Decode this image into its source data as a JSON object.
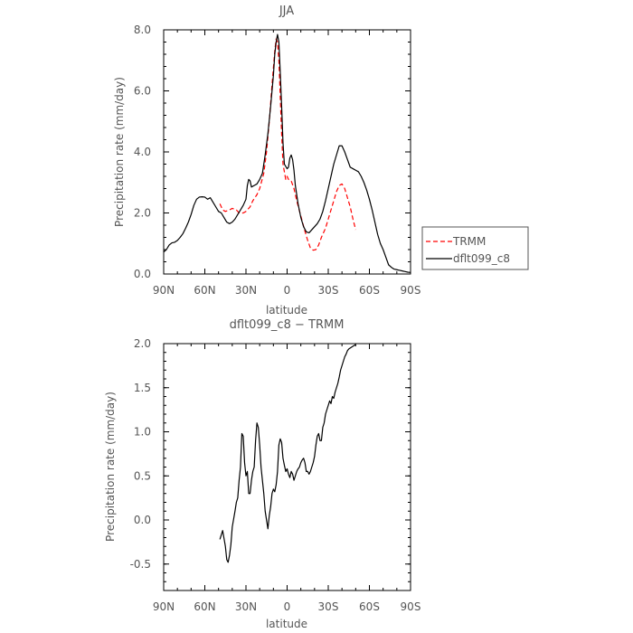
{
  "chart_data": [
    {
      "type": "line",
      "title": "JJA",
      "xlabel": "latitude",
      "ylabel": "Precipitation rate (mm/day)",
      "xlim": [
        90,
        -90
      ],
      "ylim": [
        0,
        8
      ],
      "xticks": [
        90,
        60,
        30,
        0,
        -30,
        -60,
        -90
      ],
      "xtick_labels": [
        "90N",
        "60N",
        "30N",
        "0",
        "30S",
        "60S",
        "90S"
      ],
      "yticks": [
        0,
        2,
        4,
        6,
        8
      ],
      "ytick_labels": [
        "0.0",
        "2.0",
        "4.0",
        "6.0",
        "8.0"
      ],
      "legend_position": "right-middle",
      "series": [
        {
          "name": "TRMM",
          "color": "#ff0000",
          "style": "dashed",
          "x": [
            49,
            47,
            45,
            42,
            40,
            37,
            35,
            32,
            30,
            27,
            25,
            22,
            20,
            17,
            15,
            13,
            11,
            9,
            8,
            7,
            6,
            5,
            4,
            3,
            1,
            0,
            -1,
            -3,
            -5,
            -7,
            -10,
            -13,
            -15,
            -17,
            -19,
            -21,
            -23,
            -25,
            -28,
            -30,
            -32,
            -34,
            -36,
            -38,
            -40,
            -42,
            -44,
            -46,
            -48,
            -50
          ],
          "y": [
            2.3,
            2.1,
            2.05,
            2.1,
            2.15,
            2.1,
            2.0,
            2.0,
            2.05,
            2.2,
            2.4,
            2.6,
            2.8,
            3.3,
            4.0,
            5.0,
            6.2,
            7.3,
            7.7,
            7.6,
            7.0,
            5.8,
            4.6,
            3.6,
            3.1,
            3.2,
            3.1,
            3.05,
            2.8,
            2.4,
            1.9,
            1.4,
            1.1,
            0.85,
            0.78,
            0.8,
            0.95,
            1.2,
            1.5,
            1.8,
            2.1,
            2.4,
            2.7,
            2.9,
            2.95,
            2.8,
            2.5,
            2.2,
            1.8,
            1.45
          ]
        },
        {
          "name": "dflt099_c8",
          "color": "#000000",
          "style": "solid",
          "x": [
            90,
            88,
            86,
            84,
            82,
            80,
            78,
            76,
            74,
            72,
            70,
            68,
            66,
            64,
            62,
            60,
            58,
            56,
            54,
            52,
            50,
            48,
            46,
            44,
            42,
            40,
            38,
            36,
            34,
            32,
            30,
            29,
            28,
            27,
            26,
            24,
            22,
            20,
            18,
            16,
            14,
            12,
            10,
            9,
            8,
            7,
            6,
            5,
            4,
            3,
            2,
            0,
            -1,
            -2,
            -3,
            -4,
            -5,
            -6,
            -8,
            -10,
            -12,
            -14,
            -16,
            -18,
            -20,
            -22,
            -24,
            -26,
            -28,
            -30,
            -32,
            -34,
            -36,
            -38,
            -40,
            -42,
            -44,
            -46,
            -48,
            -50,
            -52,
            -54,
            -56,
            -58,
            -60,
            -62,
            -64,
            -66,
            -68,
            -70,
            -72,
            -74,
            -76,
            -78,
            -80,
            -82,
            -84,
            -86,
            -88,
            -90
          ],
          "y": [
            0.72,
            0.8,
            0.95,
            1.02,
            1.04,
            1.1,
            1.2,
            1.32,
            1.5,
            1.7,
            1.95,
            2.25,
            2.45,
            2.52,
            2.53,
            2.52,
            2.45,
            2.5,
            2.35,
            2.2,
            2.05,
            2.0,
            1.85,
            1.7,
            1.65,
            1.7,
            1.8,
            1.95,
            2.1,
            2.25,
            2.45,
            2.9,
            3.1,
            3.05,
            2.85,
            2.9,
            2.95,
            3.1,
            3.3,
            3.9,
            4.6,
            5.5,
            6.5,
            7.2,
            7.6,
            7.85,
            7.6,
            6.6,
            5.5,
            4.3,
            3.6,
            3.45,
            3.5,
            3.8,
            3.9,
            3.75,
            3.4,
            2.9,
            2.3,
            1.85,
            1.55,
            1.38,
            1.35,
            1.45,
            1.55,
            1.65,
            1.8,
            2.05,
            2.4,
            2.8,
            3.2,
            3.6,
            3.9,
            4.2,
            4.2,
            4.0,
            3.75,
            3.5,
            3.45,
            3.4,
            3.35,
            3.2,
            3.0,
            2.75,
            2.45,
            2.1,
            1.7,
            1.3,
            1.0,
            0.8,
            0.55,
            0.3,
            0.22,
            0.16,
            0.14,
            0.12,
            0.1,
            0.08,
            0.06,
            0.05
          ]
        }
      ]
    },
    {
      "type": "line",
      "title": "dflt099_c8 − TRMM",
      "xlabel": "latitude",
      "ylabel": "Precipitation rate (mm/day)",
      "xlim": [
        90,
        -90
      ],
      "ylim": [
        -0.8,
        2.0
      ],
      "xticks": [
        90,
        60,
        30,
        0,
        -30,
        -60,
        -90
      ],
      "xtick_labels": [
        "90N",
        "60N",
        "30N",
        "0",
        "30S",
        "60S",
        "90S"
      ],
      "yticks": [
        -0.5,
        0,
        0.5,
        1.0,
        1.5,
        2.0
      ],
      "ytick_labels": [
        "-0.5",
        "0.0",
        "0.5",
        "1.0",
        "1.5",
        "2.0"
      ],
      "series": [
        {
          "name": "",
          "color": "#000000",
          "style": "solid",
          "x": [
            49,
            47,
            45,
            44,
            43,
            42,
            41,
            40,
            38,
            37,
            36,
            35,
            34,
            33,
            32,
            31,
            30,
            29,
            28,
            27,
            26,
            25,
            24,
            23,
            22,
            21,
            20,
            19,
            18,
            17,
            16,
            15,
            14,
            13,
            12,
            11,
            10,
            9,
            8,
            7,
            6,
            5,
            4,
            3,
            2,
            1,
            0,
            -1,
            -2,
            -3,
            -4,
            -5,
            -6,
            -7,
            -8,
            -9,
            -10,
            -11,
            -12,
            -13,
            -14,
            -15,
            -16,
            -17,
            -18,
            -19,
            -20,
            -21,
            -22,
            -23,
            -24,
            -25,
            -26,
            -27,
            -28,
            -29,
            -30,
            -31,
            -32,
            -33,
            -34,
            -35,
            -36,
            -37,
            -38,
            -39,
            -40,
            -41,
            -42,
            -43,
            -44,
            -45,
            -46,
            -47,
            -48,
            -49,
            -50
          ],
          "y": [
            -0.22,
            -0.12,
            -0.3,
            -0.45,
            -0.48,
            -0.4,
            -0.28,
            -0.08,
            0.1,
            0.2,
            0.25,
            0.45,
            0.6,
            0.98,
            0.95,
            0.65,
            0.5,
            0.55,
            0.3,
            0.3,
            0.45,
            0.55,
            0.6,
            0.9,
            1.1,
            1.05,
            0.85,
            0.6,
            0.45,
            0.3,
            0.1,
            0.0,
            -0.1,
            0.05,
            0.15,
            0.3,
            0.35,
            0.32,
            0.4,
            0.55,
            0.85,
            0.92,
            0.88,
            0.7,
            0.62,
            0.55,
            0.58,
            0.52,
            0.48,
            0.55,
            0.52,
            0.45,
            0.5,
            0.55,
            0.58,
            0.6,
            0.65,
            0.68,
            0.7,
            0.65,
            0.55,
            0.55,
            0.52,
            0.55,
            0.6,
            0.65,
            0.72,
            0.85,
            0.95,
            0.98,
            0.9,
            0.9,
            1.05,
            1.1,
            1.2,
            1.25,
            1.3,
            1.35,
            1.32,
            1.4,
            1.38,
            1.45,
            1.5,
            1.55,
            1.62,
            1.7,
            1.75,
            1.8,
            1.85,
            1.88,
            1.92,
            1.94,
            1.95,
            1.96,
            1.97,
            1.98,
            1.99
          ]
        }
      ]
    }
  ]
}
